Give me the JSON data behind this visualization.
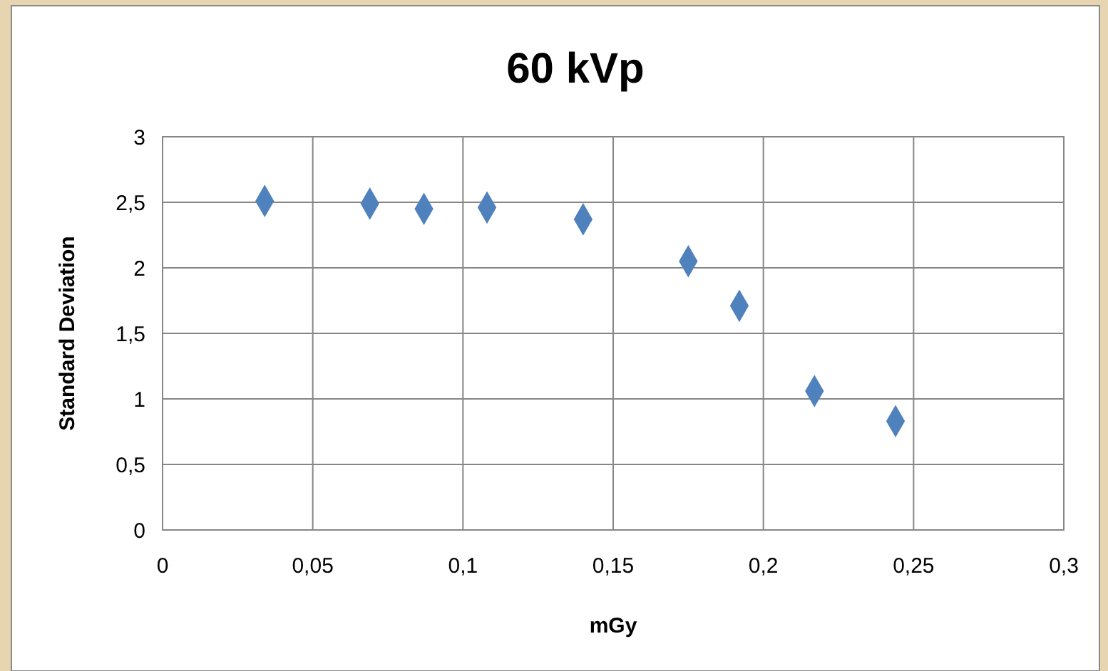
{
  "chart_data": {
    "type": "scatter",
    "title": "60 kVp",
    "xlabel": "mGy",
    "ylabel": "Standard Deviation",
    "x": [
      0.034,
      0.069,
      0.087,
      0.108,
      0.14,
      0.175,
      0.192,
      0.217,
      0.244
    ],
    "series": [
      {
        "color": "#4f81bd",
        "values": [
          2.51,
          2.49,
          2.45,
          2.46,
          2.37,
          2.05,
          1.71,
          1.06,
          0.83
        ]
      }
    ],
    "xlim": [
      0,
      0.3
    ],
    "xticks": [
      0,
      {
        "value": 0.05,
        "label": "0,05"
      },
      {
        "value": 0.1,
        "label": "0,1"
      },
      {
        "value": 0.15,
        "label": "0,15"
      },
      {
        "value": 0.2,
        "label": "0,2"
      },
      {
        "value": 0.25,
        "label": "0,25"
      },
      {
        "value": 0.3,
        "label": "0,3"
      }
    ],
    "ylim": [
      0,
      3
    ],
    "yticks": [
      0,
      {
        "value": 0.5,
        "label": "0,5"
      },
      1,
      {
        "value": 1.5,
        "label": "1,5"
      },
      2,
      {
        "value": 2.5,
        "label": "2,5"
      },
      3
    ],
    "grid": true,
    "marker": "diamond"
  }
}
